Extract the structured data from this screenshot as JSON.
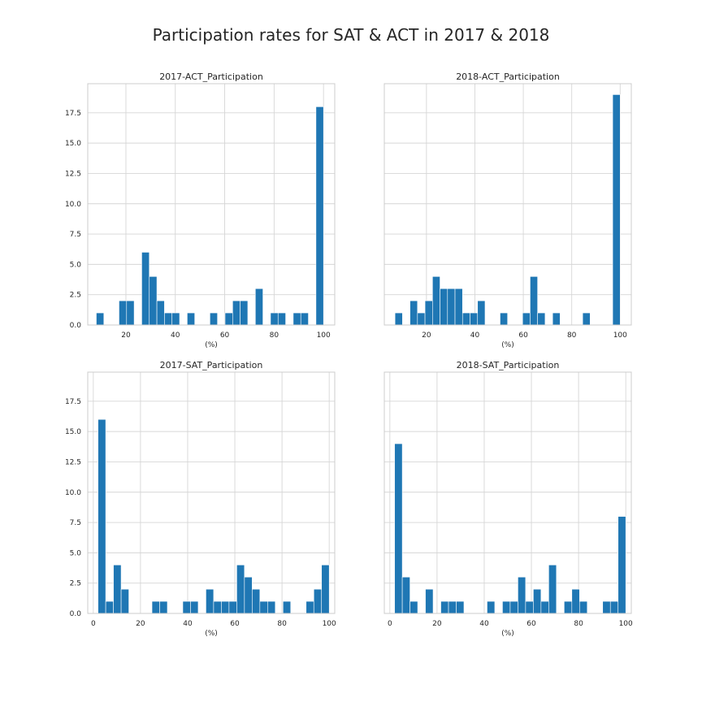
{
  "chart_data": {
    "title": "Participation rates for SAT & ACT in 2017 & 2018",
    "bar_color": "#1f77b4",
    "grid": true,
    "sharey": true,
    "bins": 30,
    "y_ticks": [
      0.0,
      2.5,
      5.0,
      7.5,
      10.0,
      12.5,
      15.0,
      17.5
    ],
    "y_tick_labels": [
      "0.0",
      "2.5",
      "5.0",
      "7.5",
      "10.0",
      "12.5",
      "15.0",
      "17.5"
    ],
    "ylim": [
      0,
      19.9
    ],
    "subplots": [
      {
        "type": "bar",
        "title": "2017-ACT_Participation",
        "xlabel": "(%)",
        "x_ticks": [
          20,
          40,
          60,
          80,
          100
        ],
        "x_tick_labels": [
          "20",
          "40",
          "60",
          "80",
          "100"
        ],
        "xlim": [
          4.55,
          104.55
        ],
        "bin_start": 8,
        "bin_width": 3.067,
        "counts": [
          1,
          0,
          0,
          2,
          2,
          0,
          6,
          4,
          2,
          1,
          1,
          0,
          1,
          0,
          0,
          1,
          0,
          1,
          2,
          2,
          0,
          3,
          0,
          1,
          1,
          0,
          1,
          1,
          0,
          18
        ]
      },
      {
        "type": "bar",
        "title": "2018-ACT_Participation",
        "xlabel": "(%)",
        "x_ticks": [
          20,
          40,
          60,
          80,
          100
        ],
        "x_tick_labels": [
          "20",
          "40",
          "60",
          "80",
          "100"
        ],
        "xlim": [
          2.6,
          104.6
        ],
        "bin_start": 7,
        "bin_width": 3.1,
        "counts": [
          1,
          0,
          2,
          1,
          2,
          4,
          3,
          3,
          3,
          1,
          1,
          2,
          0,
          0,
          1,
          0,
          0,
          1,
          4,
          1,
          0,
          1,
          0,
          0,
          0,
          1,
          0,
          0,
          0,
          19
        ]
      },
      {
        "type": "bar",
        "title": "2017-SAT_Participation",
        "xlabel": "(%)",
        "x_ticks": [
          0,
          20,
          40,
          60,
          80,
          100
        ],
        "x_tick_labels": [
          "0",
          "20",
          "40",
          "60",
          "80",
          "100"
        ],
        "xlim": [
          -2.35,
          102.35
        ],
        "bin_start": 2,
        "bin_width": 3.267,
        "counts": [
          16,
          1,
          4,
          2,
          0,
          0,
          0,
          1,
          1,
          0,
          0,
          1,
          1,
          0,
          2,
          1,
          1,
          1,
          4,
          3,
          2,
          1,
          1,
          0,
          1,
          0,
          0,
          1,
          2,
          4
        ]
      },
      {
        "type": "bar",
        "title": "2018-SAT_Participation",
        "xlabel": "(%)",
        "x_ticks": [
          0,
          20,
          40,
          60,
          80,
          100
        ],
        "x_tick_labels": [
          "0",
          "20",
          "40",
          "60",
          "80",
          "100"
        ],
        "xlim": [
          -2.35,
          102.35
        ],
        "bin_start": 2,
        "bin_width": 3.267,
        "counts": [
          14,
          3,
          1,
          0,
          2,
          0,
          1,
          1,
          1,
          0,
          0,
          0,
          1,
          0,
          1,
          1,
          3,
          1,
          2,
          1,
          4,
          0,
          1,
          2,
          1,
          0,
          0,
          1,
          1,
          8
        ]
      }
    ]
  }
}
